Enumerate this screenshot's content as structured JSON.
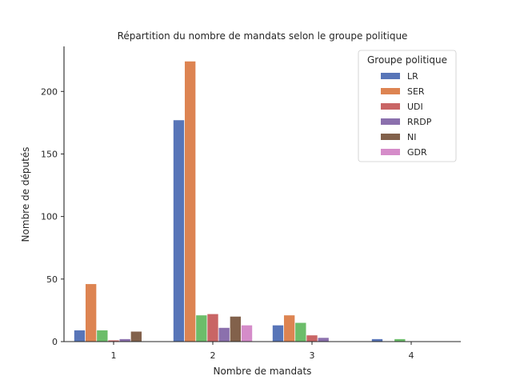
{
  "chart_data": {
    "type": "bar",
    "title": "Répartition du nombre de mandats selon le groupe politique",
    "xlabel": "Nombre de mandats",
    "ylabel": "Nombre de députés",
    "categories": [
      "1",
      "2",
      "3",
      "4"
    ],
    "ylim": [
      0,
      236
    ],
    "yticks": [
      0,
      50,
      100,
      150,
      200
    ],
    "grid": false,
    "legend": {
      "title": "Groupe politique",
      "placement": "top-right",
      "entries": [
        "LR",
        "SER",
        "UDI",
        "RRDP",
        "NI",
        "GDR"
      ]
    },
    "series": [
      {
        "name": "LR",
        "color": "#5875b8",
        "values": [
          9,
          177,
          13,
          2
        ]
      },
      {
        "name": "SER",
        "color": "#dd8452",
        "values": [
          46,
          224,
          21,
          0
        ]
      },
      {
        "color": "#6cbd6a",
        "values": [
          9,
          21,
          15,
          2
        ]
      },
      {
        "name": "UDI",
        "color": "#c96565",
        "values": [
          1,
          22,
          5,
          0
        ]
      },
      {
        "name": "RRDP",
        "color": "#8b70ad",
        "values": [
          2,
          11,
          3,
          0
        ]
      },
      {
        "name": "NI",
        "color": "#82614b",
        "values": [
          8,
          20,
          0,
          0
        ]
      },
      {
        "name": "GDR",
        "color": "#d58cc9",
        "values": [
          0,
          13,
          0,
          0
        ]
      }
    ]
  }
}
